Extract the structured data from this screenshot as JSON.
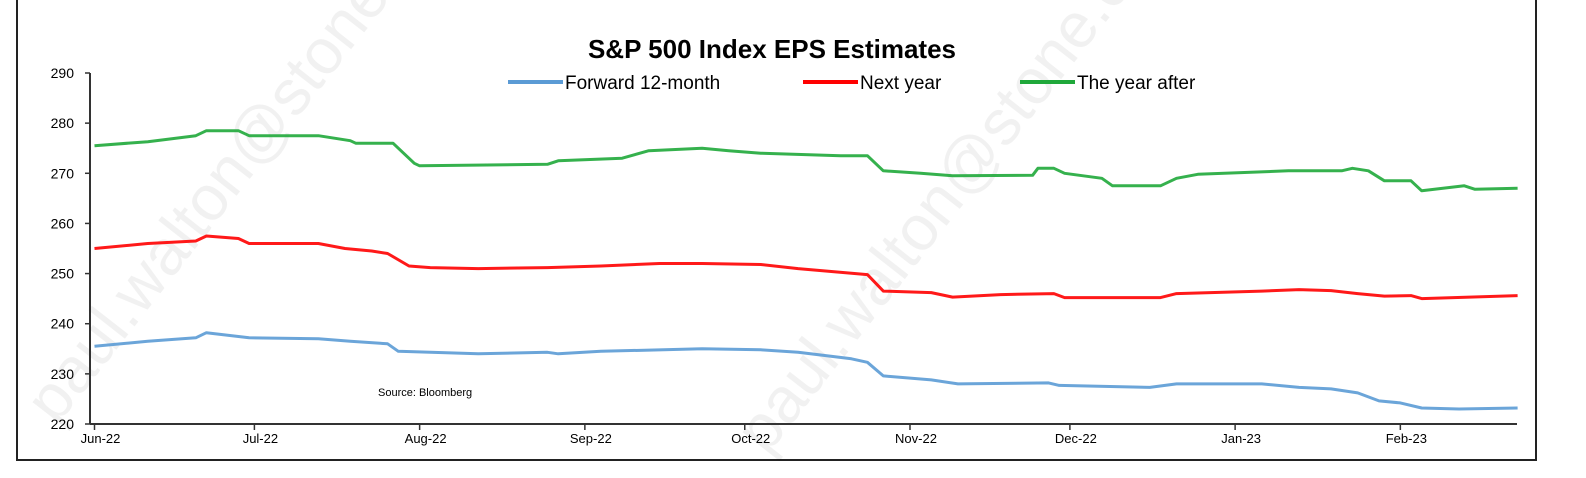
{
  "watermark": "paul.walton@stone.com",
  "chart_data": {
    "type": "line",
    "title": "S&P 500 Index EPS Estimates",
    "source_note": "Source: Bloomberg",
    "xlabel": "",
    "ylabel": "",
    "ylim": [
      220,
      290
    ],
    "yticks": [
      220,
      230,
      240,
      250,
      260,
      270,
      280,
      290
    ],
    "xlim": [
      "2022-06-01",
      "2023-02-23"
    ],
    "xticks": [
      {
        "date": "2022-06-01",
        "label": "Jun-22"
      },
      {
        "date": "2022-07-01",
        "label": "Jul-22"
      },
      {
        "date": "2022-08-01",
        "label": "Aug-22"
      },
      {
        "date": "2022-09-01",
        "label": "Sep-22"
      },
      {
        "date": "2022-10-01",
        "label": "Oct-22"
      },
      {
        "date": "2022-11-01",
        "label": "Nov-22"
      },
      {
        "date": "2022-12-01",
        "label": "Dec-22"
      },
      {
        "date": "2023-01-01",
        "label": "Jan-23"
      },
      {
        "date": "2023-02-01",
        "label": "Feb-23"
      }
    ],
    "grid": false,
    "legend_position": "top-center",
    "series": [
      {
        "name": "Forward 12-month",
        "color": "#5b9bd5",
        "points": [
          [
            "2022-06-01",
            235.5
          ],
          [
            "2022-06-11",
            236.5
          ],
          [
            "2022-06-20",
            237.2
          ],
          [
            "2022-06-22",
            238.2
          ],
          [
            "2022-06-30",
            237.2
          ],
          [
            "2022-07-13",
            237.0
          ],
          [
            "2022-07-19",
            236.5
          ],
          [
            "2022-07-26",
            236.0
          ],
          [
            "2022-07-28",
            234.5
          ],
          [
            "2022-08-12",
            234.0
          ],
          [
            "2022-08-25",
            234.3
          ],
          [
            "2022-08-27",
            234.0
          ],
          [
            "2022-09-04",
            234.5
          ],
          [
            "2022-09-23",
            235.0
          ],
          [
            "2022-10-04",
            234.8
          ],
          [
            "2022-10-11",
            234.3
          ],
          [
            "2022-10-21",
            233.0
          ],
          [
            "2022-10-24",
            232.3
          ],
          [
            "2022-10-27",
            229.6
          ],
          [
            "2022-11-05",
            228.8
          ],
          [
            "2022-11-10",
            228.0
          ],
          [
            "2022-11-27",
            228.2
          ],
          [
            "2022-11-29",
            227.7
          ],
          [
            "2022-12-16",
            227.3
          ],
          [
            "2022-12-21",
            228.0
          ],
          [
            "2023-01-06",
            228.0
          ],
          [
            "2023-01-13",
            227.3
          ],
          [
            "2023-01-19",
            227.0
          ],
          [
            "2023-01-24",
            226.2
          ],
          [
            "2023-01-28",
            224.6
          ],
          [
            "2023-02-01",
            224.2
          ],
          [
            "2023-02-05",
            223.2
          ],
          [
            "2023-02-12",
            223.0
          ],
          [
            "2023-02-23",
            223.2
          ]
        ]
      },
      {
        "name": "Next year",
        "color": "#ff0000",
        "points": [
          [
            "2022-06-01",
            255.0
          ],
          [
            "2022-06-11",
            256.0
          ],
          [
            "2022-06-20",
            256.5
          ],
          [
            "2022-06-22",
            257.5
          ],
          [
            "2022-06-28",
            257.0
          ],
          [
            "2022-06-30",
            256.0
          ],
          [
            "2022-07-13",
            256.0
          ],
          [
            "2022-07-18",
            255.0
          ],
          [
            "2022-07-23",
            254.5
          ],
          [
            "2022-07-26",
            254.0
          ],
          [
            "2022-07-30",
            251.5
          ],
          [
            "2022-08-03",
            251.2
          ],
          [
            "2022-08-12",
            251.0
          ],
          [
            "2022-08-25",
            251.2
          ],
          [
            "2022-09-04",
            251.5
          ],
          [
            "2022-09-15",
            252.0
          ],
          [
            "2022-09-23",
            252.0
          ],
          [
            "2022-10-04",
            251.8
          ],
          [
            "2022-10-11",
            251.0
          ],
          [
            "2022-10-24",
            249.8
          ],
          [
            "2022-10-27",
            246.5
          ],
          [
            "2022-11-05",
            246.2
          ],
          [
            "2022-11-09",
            245.3
          ],
          [
            "2022-11-18",
            245.8
          ],
          [
            "2022-11-28",
            246.0
          ],
          [
            "2022-11-30",
            245.2
          ],
          [
            "2022-12-18",
            245.2
          ],
          [
            "2022-12-21",
            246.0
          ],
          [
            "2023-01-06",
            246.5
          ],
          [
            "2023-01-13",
            246.8
          ],
          [
            "2023-01-19",
            246.6
          ],
          [
            "2023-01-24",
            246.0
          ],
          [
            "2023-01-29",
            245.5
          ],
          [
            "2023-02-03",
            245.6
          ],
          [
            "2023-02-05",
            245.0
          ],
          [
            "2023-02-23",
            245.6
          ]
        ]
      },
      {
        "name": "The year after",
        "color": "#1fa83a",
        "points": [
          [
            "2022-06-01",
            275.5
          ],
          [
            "2022-06-11",
            276.3
          ],
          [
            "2022-06-20",
            277.5
          ],
          [
            "2022-06-22",
            278.5
          ],
          [
            "2022-06-28",
            278.5
          ],
          [
            "2022-06-30",
            277.5
          ],
          [
            "2022-07-13",
            277.5
          ],
          [
            "2022-07-19",
            276.5
          ],
          [
            "2022-07-20",
            276.0
          ],
          [
            "2022-07-27",
            276.0
          ],
          [
            "2022-07-31",
            272.0
          ],
          [
            "2022-08-01",
            271.5
          ],
          [
            "2022-08-25",
            271.8
          ],
          [
            "2022-08-27",
            272.5
          ],
          [
            "2022-09-08",
            273.0
          ],
          [
            "2022-09-13",
            274.5
          ],
          [
            "2022-09-23",
            275.0
          ],
          [
            "2022-09-28",
            274.5
          ],
          [
            "2022-10-04",
            274.0
          ],
          [
            "2022-10-19",
            273.5
          ],
          [
            "2022-10-24",
            273.5
          ],
          [
            "2022-10-27",
            270.5
          ],
          [
            "2022-11-03",
            270.0
          ],
          [
            "2022-11-09",
            269.5
          ],
          [
            "2022-11-24",
            269.6
          ],
          [
            "2022-11-25",
            271.0
          ],
          [
            "2022-11-28",
            271.0
          ],
          [
            "2022-11-30",
            270.0
          ],
          [
            "2022-12-07",
            269.0
          ],
          [
            "2022-12-09",
            267.5
          ],
          [
            "2022-12-18",
            267.5
          ],
          [
            "2022-12-21",
            269.0
          ],
          [
            "2022-12-25",
            269.8
          ],
          [
            "2023-01-11",
            270.5
          ],
          [
            "2023-01-21",
            270.5
          ],
          [
            "2023-01-23",
            271.0
          ],
          [
            "2023-01-26",
            270.5
          ],
          [
            "2023-01-29",
            268.5
          ],
          [
            "2023-02-03",
            268.5
          ],
          [
            "2023-02-05",
            266.5
          ],
          [
            "2023-02-09",
            267.0
          ],
          [
            "2023-02-13",
            267.5
          ],
          [
            "2023-02-15",
            266.8
          ],
          [
            "2023-02-23",
            267.0
          ]
        ]
      }
    ]
  }
}
